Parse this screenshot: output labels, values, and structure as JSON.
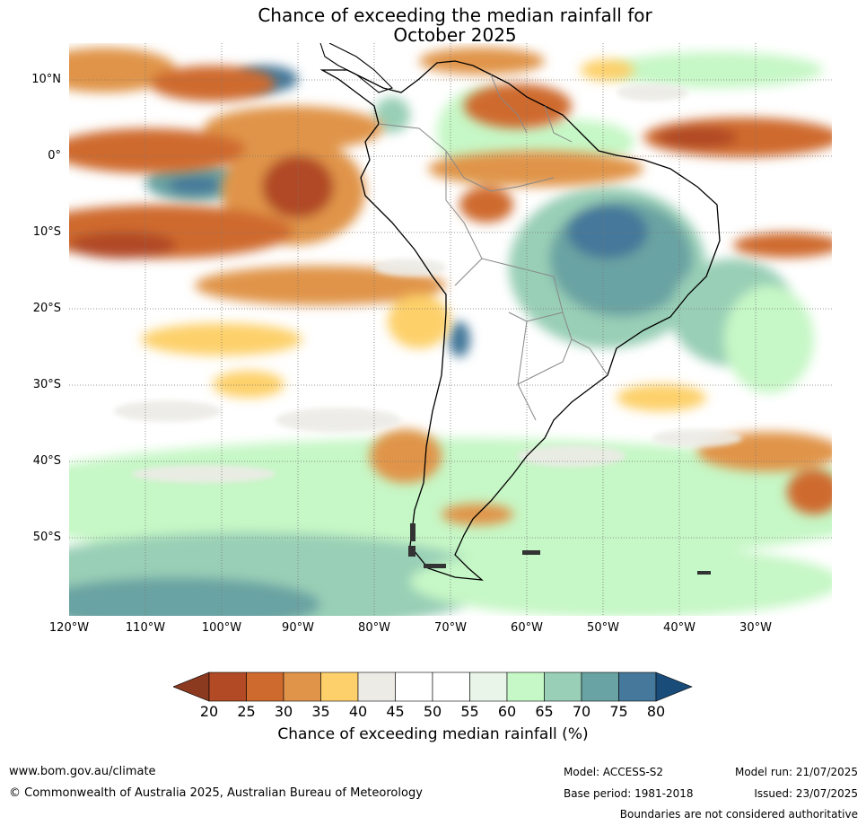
{
  "title": {
    "line1": "Chance of exceeding the median rainfall for",
    "line2": "October 2025"
  },
  "map": {
    "lat_labels": [
      "10°N",
      "0°",
      "10°S",
      "20°S",
      "30°S",
      "40°S",
      "50°S"
    ],
    "lon_labels": [
      "120°W",
      "110°W",
      "100°W",
      "90°W",
      "80°W",
      "70°W",
      "60°W",
      "50°W",
      "40°W",
      "30°W"
    ]
  },
  "colorbar": {
    "title": "Chance of exceeding median rainfall (%)",
    "ticks": [
      "20",
      "25",
      "30",
      "35",
      "40",
      "45",
      "50",
      "55",
      "60",
      "65",
      "70",
      "75",
      "80"
    ],
    "colors": [
      "#8b3a1f",
      "#b14a25",
      "#cf6a2f",
      "#e0944a",
      "#fdd06b",
      "#ecebe6",
      "#ffffff",
      "#ffffff",
      "#e9f5e9",
      "#c6f7c6",
      "#99cfb6",
      "#6aa3a3",
      "#45789a",
      "#1a4c7a"
    ]
  },
  "footer": {
    "website": "www.bom.gov.au/climate",
    "copyright": "© Commonwealth of Australia 2025, Australian Bureau of Meteorology",
    "model": "Model: ACCESS-S2",
    "base_period": "Base period: 1981-2018",
    "model_run": "Model run: 21/07/2025",
    "issued": "Issued: 23/07/2025",
    "disclaimer": "Boundaries are not considered authoritative"
  }
}
